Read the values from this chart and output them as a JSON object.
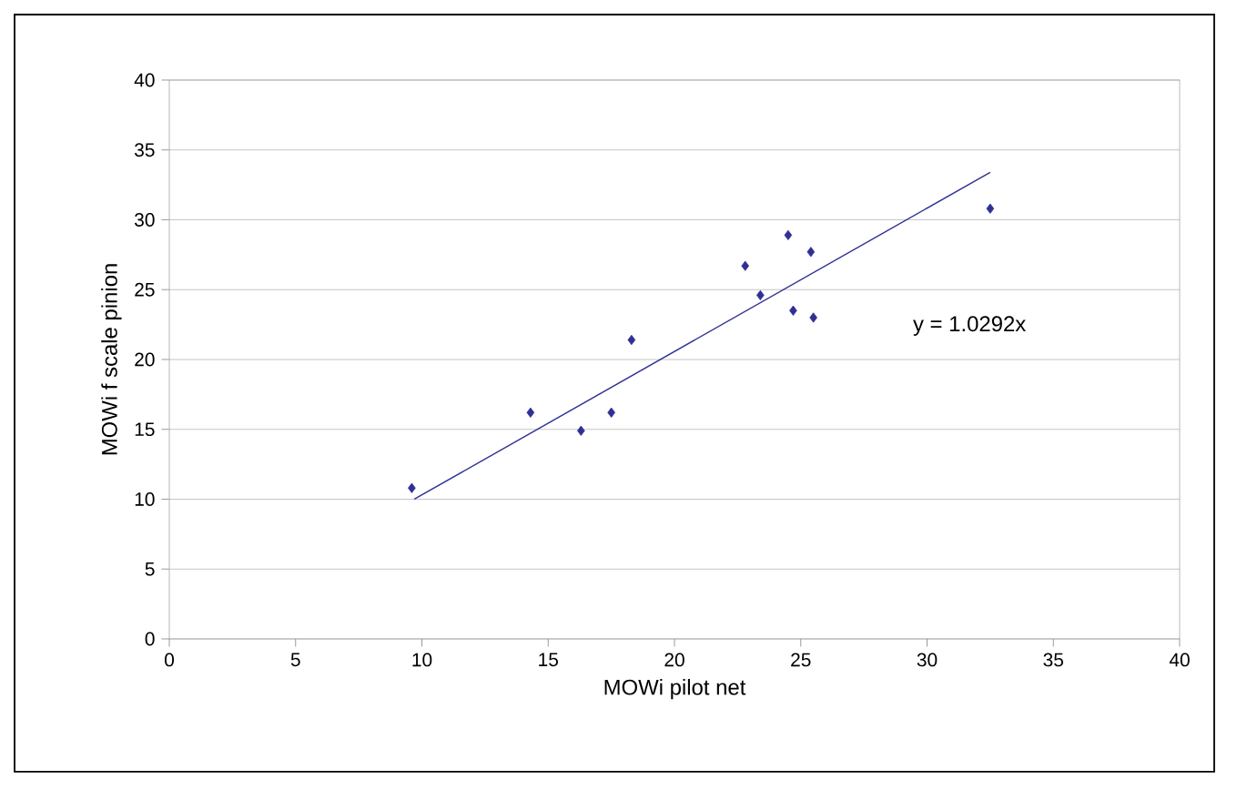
{
  "chart_data": {
    "type": "scatter",
    "xlabel": "MOWi pilot net",
    "ylabel": "MOWi f scale pinion",
    "series": [
      {
        "color": "#2e3192",
        "marker": "diamond",
        "x": [
          9.6,
          14.3,
          16.3,
          17.5,
          18.3,
          22.8,
          23.4,
          24.5,
          24.7,
          25.4,
          25.5,
          32.5
        ],
        "values": [
          10.8,
          16.2,
          14.9,
          16.2,
          21.4,
          26.7,
          24.6,
          28.9,
          23.5,
          27.7,
          23.0,
          30.8
        ]
      },
      {
        "type": "line",
        "color": "#2e3192",
        "marker": "none",
        "x": [
          9.7,
          32.5
        ],
        "values": [
          10.0,
          33.4
        ]
      }
    ],
    "annotations": [
      "y = 1.0292x"
    ],
    "xlim": [
      0,
      40
    ],
    "ylim": [
      0,
      40
    ],
    "xticks": [
      0,
      5,
      10,
      15,
      20,
      25,
      30,
      35,
      40
    ],
    "yticks": [
      0,
      5,
      10,
      15,
      20,
      25,
      30,
      35,
      40
    ],
    "grid": "y"
  }
}
